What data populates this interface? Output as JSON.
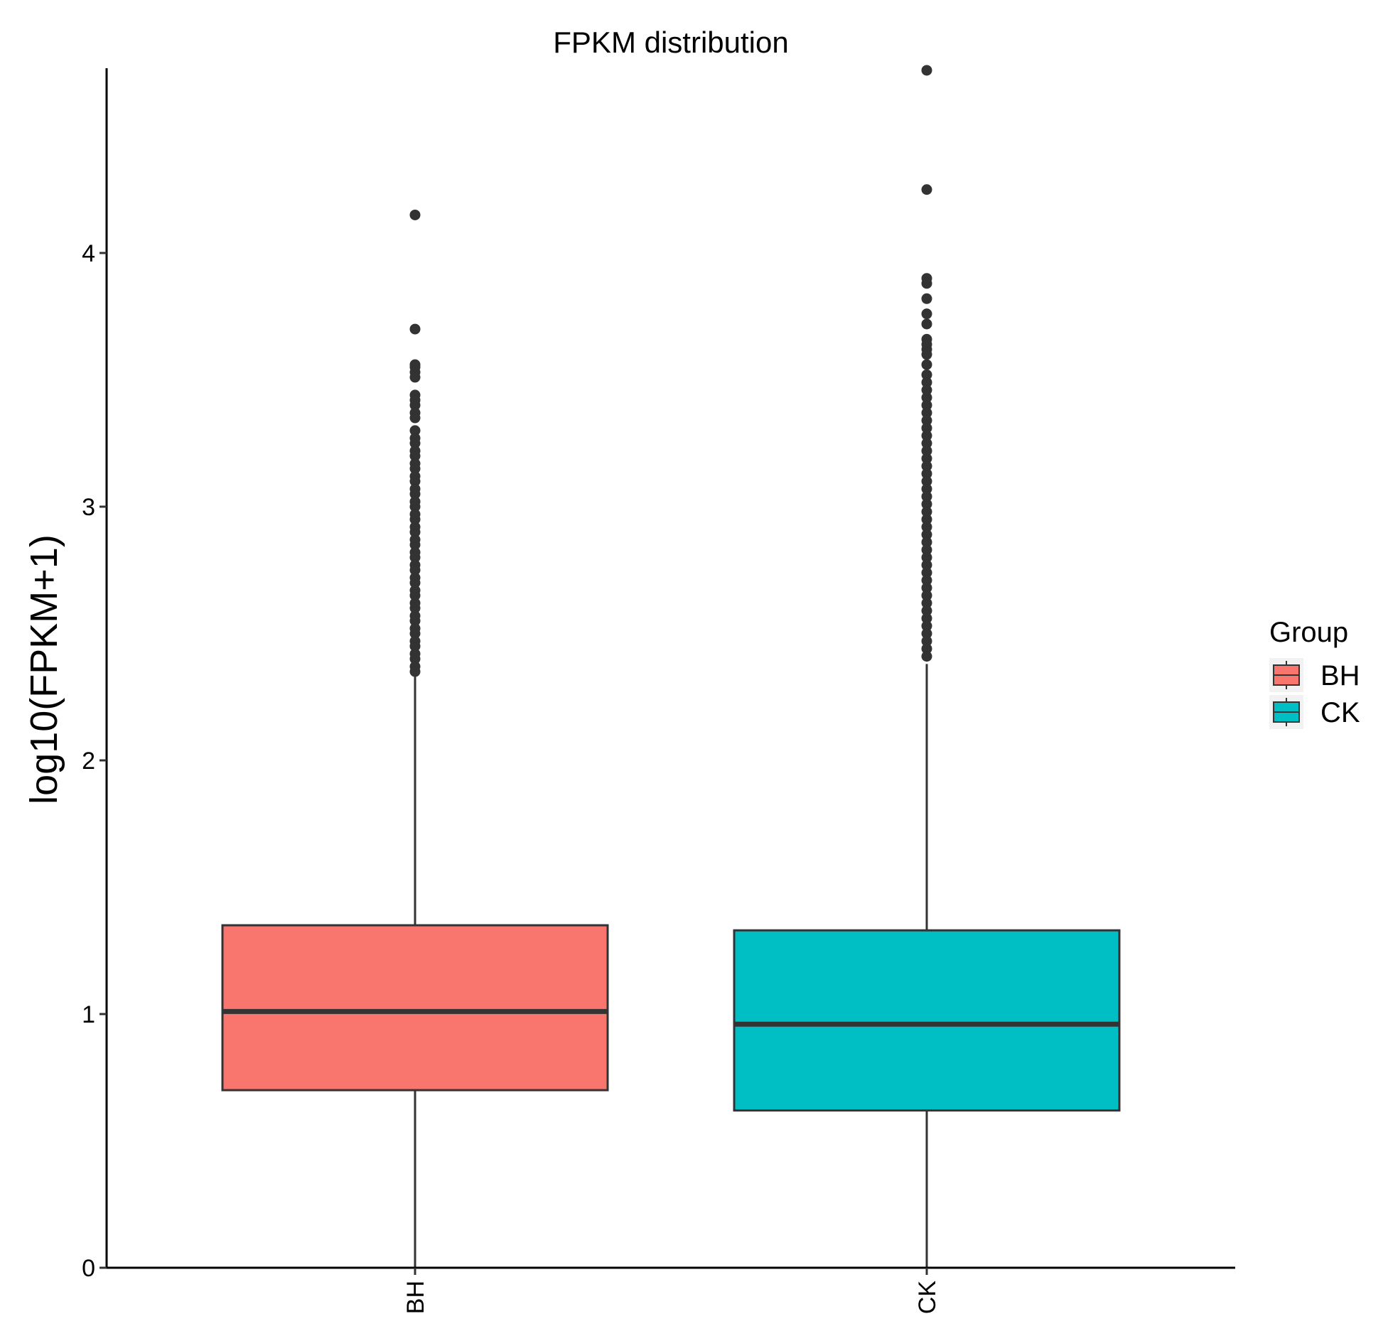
{
  "chart_data": {
    "type": "boxplot",
    "title": "FPKM distribution",
    "xlabel": "",
    "ylabel": "log10(FPKM+1)",
    "ylim": [
      0,
      4.72
    ],
    "yticks": [
      0,
      1,
      2,
      3,
      4
    ],
    "categories": [
      "BH",
      "CK"
    ],
    "legend": {
      "title": "Group",
      "position": "right"
    },
    "series": [
      {
        "name": "BH",
        "color": "#F8766D",
        "q1": 0.7,
        "median": 1.01,
        "q3": 1.35,
        "whisker_low": 0,
        "whisker_high": 2.33,
        "outliers": [
          4.15,
          3.7,
          3.56,
          3.55,
          3.53,
          3.51,
          3.44,
          3.42,
          3.4,
          3.37,
          3.35,
          3.3,
          3.27,
          3.25,
          3.22,
          3.2,
          3.17,
          3.15,
          3.12,
          3.1,
          3.07,
          3.05,
          3.02,
          3.0,
          2.97,
          2.95,
          2.92,
          2.9,
          2.87,
          2.85,
          2.82,
          2.8,
          2.77,
          2.75,
          2.72,
          2.7,
          2.67,
          2.65,
          2.62,
          2.6,
          2.57,
          2.55,
          2.52,
          2.5,
          2.47,
          2.45,
          2.42,
          2.4,
          2.37,
          2.35
        ]
      },
      {
        "name": "CK",
        "color": "#00BFC4",
        "q1": 0.62,
        "median": 0.96,
        "q3": 1.33,
        "whisker_low": 0,
        "whisker_high": 2.38,
        "outliers": [
          4.72,
          4.25,
          3.9,
          3.88,
          3.82,
          3.76,
          3.72,
          3.66,
          3.64,
          3.62,
          3.6,
          3.56,
          3.52,
          3.49,
          3.46,
          3.43,
          3.4,
          3.37,
          3.34,
          3.31,
          3.28,
          3.25,
          3.22,
          3.19,
          3.16,
          3.13,
          3.1,
          3.07,
          3.04,
          3.01,
          2.98,
          2.95,
          2.92,
          2.89,
          2.86,
          2.83,
          2.8,
          2.77,
          2.74,
          2.71,
          2.68,
          2.65,
          2.62,
          2.59,
          2.56,
          2.53,
          2.5,
          2.47,
          2.44,
          2.41
        ]
      }
    ]
  }
}
